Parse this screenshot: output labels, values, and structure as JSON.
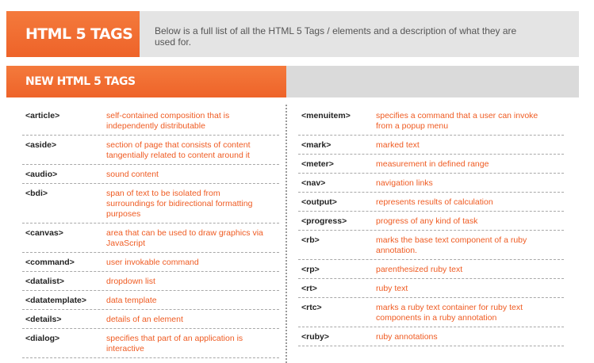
{
  "header": {
    "title": "HTML 5 TAGS",
    "description": "Below is a full list of all the HTML  5 Tags / elements and a description of what they are used for."
  },
  "section": {
    "title": "NEW HTML 5 TAGS"
  },
  "left_column": [
    {
      "tag": "<article>",
      "desc": "self-contained composition that is independently distributable"
    },
    {
      "tag": "<aside>",
      "desc": "section of page that consists of content tangentially related to content around it"
    },
    {
      "tag": "<audio>",
      "desc": "sound content"
    },
    {
      "tag": "<bdi>",
      "desc": "span of text to be isolated from surroundings for bidirectional formatting purposes"
    },
    {
      "tag": "<canvas>",
      "desc": "area that can be used to draw graphics via JavaScript"
    },
    {
      "tag": "<command>",
      "desc": "user invokable command"
    },
    {
      "tag": "<datalist>",
      "desc": "dropdown list"
    },
    {
      "tag": "<datatemplate>",
      "desc": "data template"
    },
    {
      "tag": "<details>",
      "desc": "details of an element"
    },
    {
      "tag": "<dialog>",
      "desc": "specifies that part of an application is interactive"
    }
  ],
  "right_column": [
    {
      "tag": "<menuitem>",
      "desc": "specifies a command that a user can invoke from a popup menu"
    },
    {
      "tag": "<mark>",
      "desc": "marked text"
    },
    {
      "tag": "<meter>",
      "desc": "measurement in defined range"
    },
    {
      "tag": "<nav>",
      "desc": "navigation links"
    },
    {
      "tag": "<output>",
      "desc": "represents results of calculation"
    },
    {
      "tag": "<progress>",
      "desc": "progress of any kind of task"
    },
    {
      "tag": "<rb>",
      "desc": "marks the base text component of a ruby annotation."
    },
    {
      "tag": "<rp>",
      "desc": "parenthesized ruby text"
    },
    {
      "tag": "<rt>",
      "desc": "ruby text"
    },
    {
      "tag": "<rtc>",
      "desc": "marks a ruby text container for ruby text components in a ruby annotation"
    },
    {
      "tag": "<ruby>",
      "desc": "ruby annotations"
    }
  ]
}
